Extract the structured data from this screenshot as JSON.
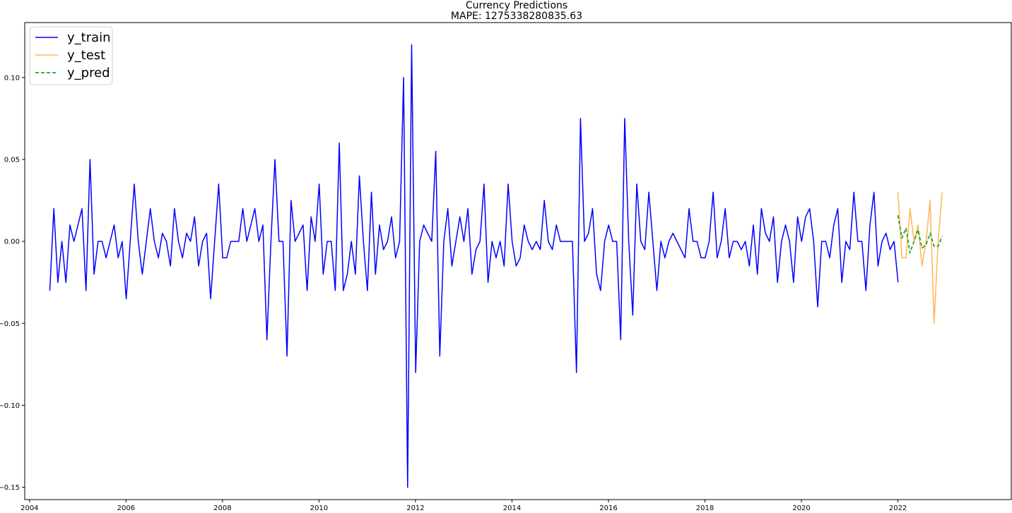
{
  "chart_data": {
    "type": "line",
    "title": "Currency Predictions",
    "subtitle": "MAPE: 1275338280835.63",
    "xlabel": "",
    "ylabel": "",
    "xlim": [
      2003.9,
      2024.35
    ],
    "ylim": [
      -0.1575,
      0.1335
    ],
    "x_ticks": [
      "2004",
      "2006",
      "2008",
      "2010",
      "2012",
      "2014",
      "2016",
      "2018",
      "2020",
      "2022"
    ],
    "y_ticks": [
      "0.10",
      "0.05",
      "0.00",
      "−0.05",
      "−0.10",
      "−0.15"
    ],
    "grid": false,
    "legend_position": "upper-left",
    "series": [
      {
        "name": "y_train",
        "color": "#0000ff",
        "style": "solid",
        "x_start": 2004.42,
        "x_step": 0.0833333,
        "values": [
          -0.03,
          0.02,
          -0.025,
          0.0,
          -0.025,
          0.01,
          0.0,
          0.01,
          0.02,
          -0.03,
          0.05,
          -0.02,
          0.0,
          0.0,
          -0.01,
          0.0,
          0.01,
          -0.01,
          0.0,
          -0.035,
          0.0,
          0.035,
          0.0,
          -0.02,
          0.0,
          0.02,
          0.0,
          -0.01,
          0.005,
          0.0,
          -0.015,
          0.02,
          0.0,
          -0.01,
          0.005,
          0.0,
          0.015,
          -0.015,
          0.0,
          0.005,
          -0.035,
          0.0,
          0.035,
          -0.01,
          -0.01,
          0.0,
          0.0,
          0.0,
          0.02,
          0.0,
          0.01,
          0.02,
          0.0,
          0.01,
          -0.06,
          0.0,
          0.05,
          0.0,
          0.0,
          -0.07,
          0.025,
          0.0,
          0.005,
          0.01,
          -0.03,
          0.015,
          0.0,
          0.035,
          -0.02,
          0.0,
          0.0,
          -0.03,
          0.06,
          -0.03,
          -0.02,
          0.0,
          -0.02,
          0.04,
          0.0,
          -0.03,
          0.03,
          -0.02,
          0.01,
          -0.005,
          0.0,
          0.015,
          -0.01,
          0.0,
          0.1,
          -0.15,
          0.12,
          -0.08,
          0.0,
          0.01,
          0.005,
          0.0,
          0.055,
          -0.07,
          0.0,
          0.02,
          -0.015,
          0.0,
          0.015,
          0.0,
          0.02,
          -0.02,
          -0.005,
          0.0,
          0.035,
          -0.025,
          0.0,
          -0.01,
          0.0,
          -0.015,
          0.035,
          0.0,
          -0.015,
          -0.01,
          0.01,
          0.0,
          -0.005,
          0.0,
          -0.005,
          0.025,
          0.0,
          -0.005,
          0.01,
          0.0,
          0.0,
          0.0,
          0.0,
          -0.08,
          0.075,
          0.0,
          0.005,
          0.02,
          -0.02,
          -0.03,
          0.0,
          0.01,
          0.0,
          0.0,
          -0.06,
          0.075,
          0.0,
          -0.045,
          0.035,
          0.0,
          -0.005,
          0.03,
          0.0,
          -0.03,
          0.0,
          -0.01,
          0.0,
          0.005,
          0.0,
          -0.005,
          -0.01,
          0.02,
          0.0,
          0.0,
          -0.01,
          -0.01,
          0.0,
          0.03,
          -0.01,
          0.0,
          0.02,
          -0.01,
          0.0,
          0.0,
          -0.005,
          0.0,
          -0.015,
          0.01,
          -0.02,
          0.02,
          0.005,
          0.0,
          0.015,
          -0.025,
          0.0,
          0.01,
          0.0,
          -0.025,
          0.015,
          0.0,
          0.015,
          0.02,
          0.0,
          -0.04,
          0.0,
          0.0,
          -0.01,
          0.01,
          0.02,
          -0.025,
          0.0,
          -0.005,
          0.03,
          0.0,
          0.0,
          -0.03,
          0.01,
          0.03,
          -0.015,
          0.0,
          0.005,
          -0.005,
          0.0,
          -0.025
        ]
      },
      {
        "name": "y_test",
        "color": "#ffb74d",
        "style": "solid",
        "x_start": 2022.0,
        "x_step": 0.0833333,
        "values": [
          0.03,
          -0.01,
          -0.01,
          0.02,
          0.0,
          0.01,
          -0.015,
          0.0,
          0.025,
          -0.05,
          0.0,
          0.03
        ]
      },
      {
        "name": "y_pred",
        "color": "#2ca02c",
        "style": "dashed",
        "x_start": 2022.0,
        "x_step": 0.0833333,
        "values": [
          0.016,
          0.002,
          0.008,
          -0.007,
          0.0,
          0.007,
          -0.004,
          -0.002,
          0.005,
          -0.003,
          -0.003,
          0.003
        ]
      }
    ]
  }
}
